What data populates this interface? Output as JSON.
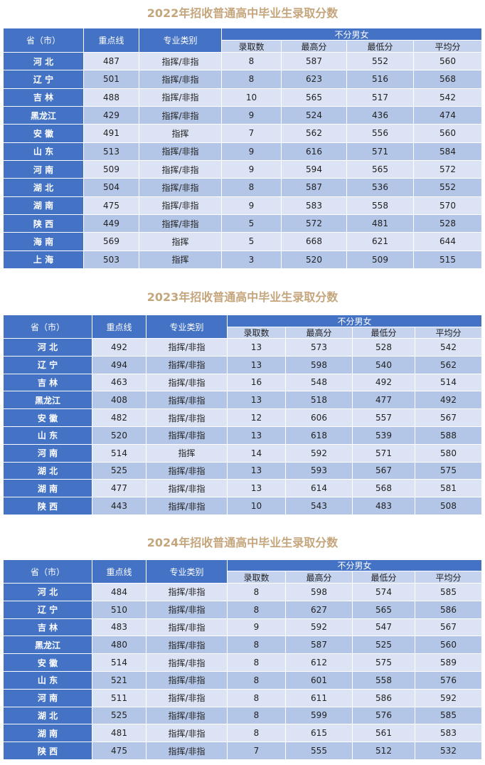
{
  "tables": [
    {
      "title": "2022年招收普通高中毕业生录取分数",
      "headers": {
        "province": "省（市）",
        "key_line": "重点线",
        "major": "专业类别",
        "group": "不分男女",
        "count": "录取数",
        "max": "最高分",
        "min": "最低分",
        "avg": "平均分"
      },
      "rows": [
        [
          "河 北",
          487,
          "指挥/非指",
          8,
          587,
          552,
          560
        ],
        [
          "辽 宁",
          501,
          "指挥/非指",
          8,
          623,
          516,
          568
        ],
        [
          "吉 林",
          488,
          "指挥/非指",
          10,
          565,
          517,
          542
        ],
        [
          "黑龙江",
          429,
          "指挥/非指",
          9,
          524,
          436,
          474
        ],
        [
          "安 徽",
          491,
          "指挥",
          7,
          562,
          556,
          560
        ],
        [
          "山 东",
          513,
          "指挥/非指",
          9,
          616,
          571,
          584
        ],
        [
          "河 南",
          509,
          "指挥/非指",
          9,
          594,
          565,
          572
        ],
        [
          "湖 北",
          504,
          "指挥/非指",
          8,
          587,
          536,
          552
        ],
        [
          "湖 南",
          475,
          "指挥/非指",
          9,
          583,
          558,
          570
        ],
        [
          "陕 西",
          449,
          "指挥/非指",
          5,
          572,
          481,
          528
        ],
        [
          "海 南",
          569,
          "指挥",
          5,
          668,
          621,
          644
        ],
        [
          "上 海",
          503,
          "指挥",
          3,
          520,
          509,
          515
        ]
      ]
    },
    {
      "title": "2023年招收普通高中毕业生录取分数",
      "headers": {
        "province": "省（市）",
        "key_line": "重点线",
        "major": "专业类别",
        "group": "不分男女",
        "count": "录取数",
        "max": "最高分",
        "min": "最低分",
        "avg": "平均分"
      },
      "rows": [
        [
          "河 北",
          492,
          "指挥/非指",
          13,
          573,
          528,
          542
        ],
        [
          "辽 宁",
          494,
          "指挥/非指",
          13,
          598,
          540,
          562
        ],
        [
          "吉 林",
          463,
          "指挥/非指",
          16,
          548,
          492,
          514
        ],
        [
          "黑龙江",
          408,
          "指挥/非指",
          13,
          518,
          477,
          492
        ],
        [
          "安 徽",
          482,
          "指挥/非指",
          12,
          606,
          557,
          567
        ],
        [
          "山 东",
          520,
          "指挥/非指",
          13,
          618,
          539,
          588
        ],
        [
          "河 南",
          514,
          "指挥",
          14,
          592,
          571,
          580
        ],
        [
          "湖 北",
          525,
          "指挥/非指",
          13,
          593,
          567,
          575
        ],
        [
          "湖 南",
          477,
          "指挥/非指",
          13,
          614,
          568,
          581
        ],
        [
          "陕 西",
          443,
          "指挥/非指",
          10,
          543,
          483,
          508
        ]
      ]
    },
    {
      "title": "2024年招收普通高中毕业生录取分数",
      "headers": {
        "province": "省（市）",
        "key_line": "重点线",
        "major": "专业类别",
        "group": "不分男女",
        "count": "录取数",
        "max": "最高分",
        "min": "最低分",
        "avg": "平均分"
      },
      "rows": [
        [
          "河 北",
          484,
          "指挥/非指",
          8,
          598,
          574,
          585
        ],
        [
          "辽 宁",
          510,
          "指挥/非指",
          8,
          627,
          565,
          586
        ],
        [
          "吉 林",
          483,
          "指挥/非指",
          9,
          592,
          547,
          567
        ],
        [
          "黑龙江",
          480,
          "指挥/非指",
          8,
          587,
          525,
          560
        ],
        [
          "安 徽",
          514,
          "指挥/非指",
          8,
          612,
          575,
          589
        ],
        [
          "山 东",
          521,
          "指挥/非指",
          8,
          601,
          558,
          576
        ],
        [
          "河 南",
          511,
          "指挥/非指",
          8,
          611,
          586,
          592
        ],
        [
          "湖 北",
          525,
          "指挥/非指",
          8,
          599,
          576,
          585
        ],
        [
          "湖 南",
          481,
          "指挥/非指",
          8,
          615,
          561,
          583
        ],
        [
          "陕 西",
          475,
          "指挥/非指",
          7,
          555,
          512,
          532
        ]
      ]
    }
  ]
}
